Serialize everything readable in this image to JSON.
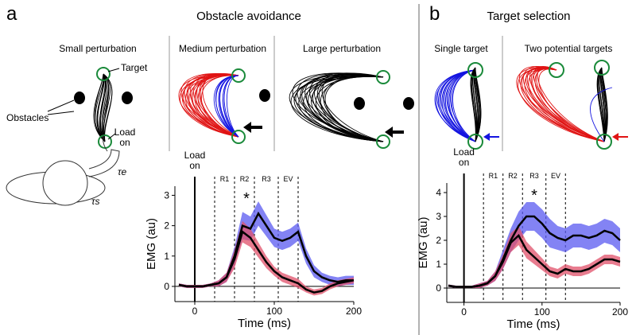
{
  "figure": {
    "a": {
      "letter": "a",
      "title": "Obstacle avoidance",
      "subtitles": [
        "Small perturbation",
        "Medium perturbation",
        "Large perturbation"
      ],
      "target": "Target",
      "obstacles": "Obstacles",
      "load": "Load on",
      "tau_e": "τe",
      "tau_s": "τs"
    },
    "b": {
      "letter": "b",
      "title": "Target selection",
      "subtitles": [
        "Single target",
        "Two potential targets"
      ]
    }
  },
  "chart_data": [
    {
      "type": "line",
      "xlabel": "Time (ms)",
      "ylabel": "EMG (au)",
      "xlim": [
        -25,
        200
      ],
      "ylim": [
        -0.5,
        3.3
      ],
      "xticks": [
        0,
        100,
        200
      ],
      "yticks": [
        0,
        1,
        2,
        3
      ],
      "onset": {
        "x": 0,
        "label": "Load on"
      },
      "events": {
        "x": [
          25,
          50,
          75,
          105,
          130
        ],
        "labels": [
          "R1",
          "R2",
          "R3",
          "EV"
        ]
      },
      "star": {
        "x": 65,
        "label": "*"
      },
      "x": [
        -20,
        -10,
        0,
        10,
        20,
        30,
        40,
        50,
        60,
        70,
        80,
        90,
        100,
        110,
        120,
        130,
        140,
        150,
        160,
        170,
        180,
        190,
        200
      ],
      "series": [
        {
          "color": "#5a5af0",
          "values": [
            0.05,
            0,
            0,
            0,
            0.05,
            0.1,
            0.3,
            1.0,
            2.0,
            1.9,
            2.4,
            2.0,
            1.6,
            1.5,
            1.6,
            1.8,
            1.0,
            0.5,
            0.3,
            0.2,
            0.15,
            0.2,
            0.2
          ],
          "error": [
            0.05,
            0.05,
            0.05,
            0.05,
            0.05,
            0.1,
            0.15,
            0.3,
            0.45,
            0.4,
            0.4,
            0.35,
            0.3,
            0.3,
            0.3,
            0.3,
            0.25,
            0.2,
            0.15,
            0.15,
            0.15,
            0.15,
            0.15
          ]
        },
        {
          "color": "#e0506a",
          "values": [
            0.05,
            0,
            0,
            0,
            0.05,
            0.1,
            0.3,
            0.9,
            1.8,
            1.6,
            1.2,
            0.8,
            0.5,
            0.3,
            0.2,
            0.1,
            -0.1,
            -0.2,
            -0.15,
            0,
            0.1,
            0.15,
            0.2
          ],
          "error": [
            0.05,
            0.05,
            0.05,
            0.05,
            0.05,
            0.1,
            0.15,
            0.3,
            0.35,
            0.3,
            0.25,
            0.2,
            0.15,
            0.15,
            0.15,
            0.15,
            0.1,
            0.1,
            0.1,
            0.1,
            0.1,
            0.1,
            0.1
          ]
        }
      ]
    },
    {
      "type": "line",
      "xlabel": "Time (ms)",
      "ylabel": "EMG (au)",
      "xlim": [
        -22,
        200
      ],
      "ylim": [
        -0.6,
        4.4
      ],
      "xticks": [
        0,
        100,
        200
      ],
      "yticks": [
        0,
        1,
        2,
        3,
        4
      ],
      "onset": {
        "x": 0,
        "label": "Load on"
      },
      "events": {
        "x": [
          25,
          50,
          75,
          105,
          130
        ],
        "labels": [
          "R1",
          "R2",
          "R3",
          "EV"
        ]
      },
      "star": {
        "x": 90,
        "label": "*"
      },
      "x": [
        -20,
        -10,
        0,
        10,
        20,
        30,
        40,
        50,
        60,
        70,
        80,
        90,
        100,
        110,
        120,
        130,
        140,
        150,
        160,
        170,
        180,
        190,
        200
      ],
      "series": [
        {
          "color": "#5a5af0",
          "values": [
            0.1,
            0.05,
            0.05,
            0.05,
            0.1,
            0.2,
            0.5,
            1.2,
            2.0,
            2.6,
            3.0,
            3.0,
            2.7,
            2.3,
            2.1,
            2.0,
            2.2,
            2.2,
            2.1,
            2.2,
            2.4,
            2.3,
            2.0
          ],
          "error": [
            0.05,
            0.05,
            0.05,
            0.05,
            0.1,
            0.1,
            0.2,
            0.4,
            0.5,
            0.6,
            0.6,
            0.6,
            0.6,
            0.6,
            0.5,
            0.5,
            0.5,
            0.5,
            0.5,
            0.5,
            0.5,
            0.5,
            0.5
          ]
        },
        {
          "color": "#e0506a",
          "values": [
            0.1,
            0.05,
            0.05,
            0.05,
            0.1,
            0.2,
            0.5,
            1.1,
            1.9,
            2.2,
            1.6,
            1.3,
            1.0,
            0.7,
            0.6,
            0.8,
            0.7,
            0.7,
            0.8,
            1.0,
            1.2,
            1.2,
            1.1
          ],
          "error": [
            0.05,
            0.05,
            0.05,
            0.05,
            0.1,
            0.1,
            0.2,
            0.3,
            0.4,
            0.4,
            0.35,
            0.3,
            0.25,
            0.2,
            0.2,
            0.2,
            0.2,
            0.2,
            0.2,
            0.2,
            0.2,
            0.2,
            0.2
          ]
        }
      ]
    }
  ]
}
